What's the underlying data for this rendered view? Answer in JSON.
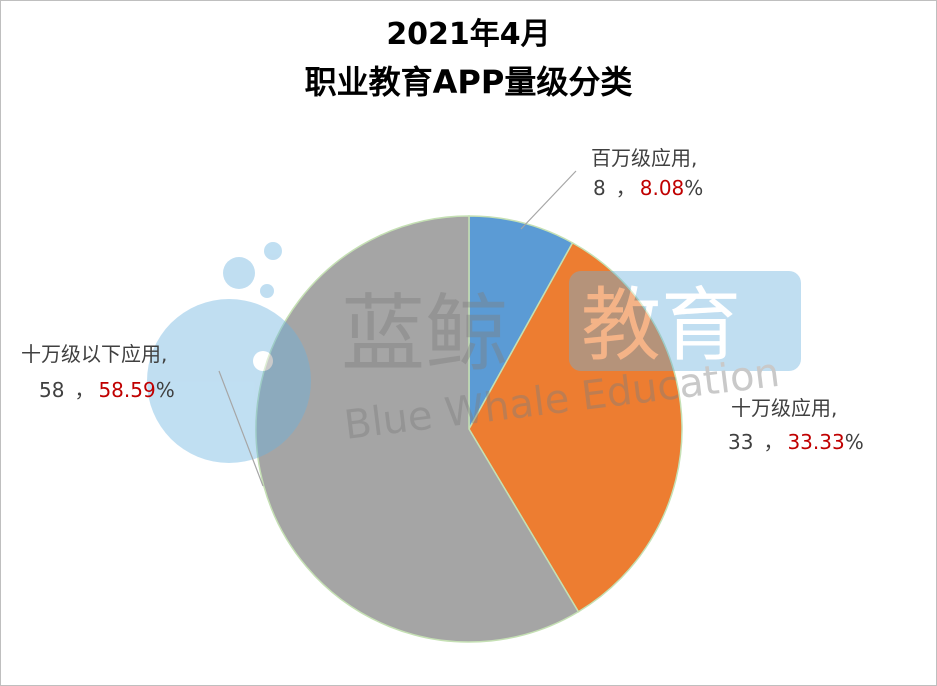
{
  "chart_data": {
    "type": "pie",
    "title_line1": "2021年4月",
    "title_line2": "职业教育APP量级分类",
    "slices": [
      {
        "label": "百万级应用,",
        "value": 8,
        "value_text": "8",
        "percent": 8.08,
        "percent_text": "8.08",
        "color": "#5b9bd5"
      },
      {
        "label": "十万级应用,",
        "value": 33,
        "value_text": "33",
        "percent": 33.33,
        "percent_text": "33.33",
        "color": "#ed7d31"
      },
      {
        "label": "十万级以下应用,",
        "value": 58,
        "value_text": "58",
        "percent": 58.59,
        "percent_text": "58.59",
        "color": "#a5a5a5"
      }
    ],
    "separator": "，",
    "percent_sign": "%",
    "label_text_color": "#404040",
    "percent_color": "#c00000",
    "edge_color": "#c5e0b4"
  },
  "watermark": {
    "cn_left": "蓝鲸",
    "cn_right": "教育",
    "en": "Blue Whale Education"
  }
}
